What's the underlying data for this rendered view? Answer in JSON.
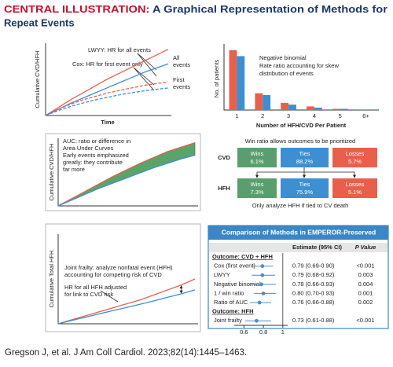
{
  "header": {
    "label": "CENTRAL ILLUSTRATION:",
    "title_lines": [
      "A Graphical Representation of Methods for",
      "Repeat Events"
    ]
  },
  "chart_data": [
    {
      "type": "line",
      "ylabel": "Cumulative CVD/HFH",
      "xlabel": "Time",
      "annotations": [
        [
          "LWYY: HR for all events"
        ],
        [
          "Cox: HR for first event only"
        ],
        [
          "All",
          "events"
        ],
        [
          "First",
          "events"
        ]
      ],
      "x": [
        0,
        1,
        2,
        3,
        4,
        5,
        6,
        7,
        8,
        9,
        10
      ],
      "xlim": [
        0,
        10
      ],
      "ylim": [
        0,
        4.2
      ],
      "series": [
        {
          "color": "#e8604c",
          "values": [
            0,
            0.45,
            0.9,
            1.3,
            1.7,
            2.1,
            2.45,
            2.8,
            3.15,
            3.5,
            3.85
          ]
        },
        {
          "color": "#3d8fd1",
          "values": [
            0,
            0.35,
            0.7,
            1.0,
            1.3,
            1.6,
            1.9,
            2.2,
            2.5,
            2.75,
            3.0
          ]
        },
        {
          "color": "#e8604c",
          "dash": true,
          "values": [
            0,
            0.35,
            0.65,
            0.9,
            1.1,
            1.3,
            1.45,
            1.6,
            1.75,
            1.85,
            1.95
          ]
        },
        {
          "color": "#3d8fd1",
          "dash": true,
          "values": [
            0,
            0.28,
            0.52,
            0.72,
            0.9,
            1.05,
            1.2,
            1.32,
            1.43,
            1.52,
            1.6
          ]
        }
      ]
    },
    {
      "type": "bar",
      "text_lines": [
        "Negative binomial",
        "Rate ratio accounting for skew",
        "distribution of events"
      ],
      "ylabel": "No. of patients",
      "xlabel": "Number of HFH/CVD Per Patient",
      "categories": [
        "1",
        "2",
        "3",
        "4",
        "5",
        "6+"
      ],
      "ylim": [
        0,
        105
      ],
      "series": [
        {
          "color": "#e8604c",
          "values": [
            100,
            28,
            12,
            6,
            2,
            1
          ]
        },
        {
          "color": "#3d8fd1",
          "values": [
            90,
            25,
            9,
            4,
            2,
            1
          ]
        }
      ]
    },
    {
      "type": "line",
      "ylabel": "Cumulative CVD/HFH",
      "annotations": [
        [
          "AUC: ratio or difference in",
          "Area Under Curves"
        ],
        [
          "Early events emphasized",
          "greatly: they contribute",
          "far more"
        ]
      ],
      "x": [
        0,
        1,
        2,
        3,
        4,
        5,
        6,
        7,
        8,
        9,
        10
      ],
      "xlim": [
        0,
        10
      ],
      "ylim": [
        0,
        4.6
      ],
      "fill_between": [
        0,
        1
      ],
      "fill_color": "#5aa469",
      "series": [
        {
          "color": "#e8604c",
          "values": [
            0,
            0.5,
            1.0,
            1.5,
            2.0,
            2.45,
            2.9,
            3.3,
            3.7,
            4.0,
            4.3
          ]
        },
        {
          "color": "#3d8fd1",
          "values": [
            0,
            0.4,
            0.8,
            1.2,
            1.55,
            1.9,
            2.25,
            2.6,
            2.9,
            3.2,
            3.45
          ]
        }
      ]
    },
    {
      "type": "line",
      "ylabel": "Cumulative Total HFH",
      "annotations": [
        [
          "Joint frailty: analyze nonfatal event (HFH)",
          "accounting for competing risk of CVD"
        ],
        [
          "HR for all HFH adjusted",
          "for link to CVD risk"
        ]
      ],
      "x": [
        0,
        1,
        2,
        3,
        4,
        5,
        6,
        7,
        8,
        9,
        10
      ],
      "xlim": [
        0,
        10
      ],
      "ylim": [
        0,
        4.5
      ],
      "series": [
        {
          "color": "#e8604c",
          "values": [
            0,
            0.2,
            0.4,
            0.6,
            0.8,
            1.0,
            1.2,
            1.45,
            1.7,
            1.95,
            2.25
          ]
        },
        {
          "color": "#3d8fd1",
          "values": [
            0,
            0.17,
            0.33,
            0.5,
            0.66,
            0.82,
            0.98,
            1.15,
            1.33,
            1.5,
            1.7
          ]
        }
      ]
    },
    {
      "type": "forest",
      "title": "Comparison of Methods in EMPEROR-Preserved",
      "columns": [
        "Estimate (95% CI)",
        "P Value"
      ],
      "color": "#4a90c8",
      "xlim": [
        0.5,
        1.05
      ],
      "xticks": [
        0.6,
        0.8,
        1
      ],
      "groups": [
        {
          "label": "Outcome: CVD + HFH",
          "rows": [
            {
              "label": "Cox (first event)",
              "estimate": 0.79,
              "lower": 0.69,
              "upper": 0.9,
              "value_label": "0.79 (0.69-0.90)",
              "p": "<0.001"
            },
            {
              "label": "LWYY",
              "estimate": 0.79,
              "lower": 0.68,
              "upper": 0.92,
              "value_label": "0.79 (0.68-0.92)",
              "p": "0.003"
            },
            {
              "label": "Negative binomial",
              "estimate": 0.78,
              "lower": 0.66,
              "upper": 0.93,
              "value_label": "0.78 (0.66-0.93)",
              "p": "0.004"
            },
            {
              "label": "1 / win ratio",
              "estimate": 0.8,
              "lower": 0.7,
              "upper": 0.93,
              "value_label": "0.80 (0.70-0.93)",
              "p": "0.001"
            },
            {
              "label": "Ratio of AUC",
              "estimate": 0.76,
              "lower": 0.66,
              "upper": 0.88,
              "value_label": "0.76 (0.66-0.88)",
              "p": "0.002"
            }
          ]
        },
        {
          "label": "Outcome: HFH",
          "rows": [
            {
              "label": "Joint frailty",
              "estimate": 0.73,
              "lower": 0.61,
              "upper": 0.88,
              "value_label": "0.73 (0.61-0.88)",
              "p": "<0.001"
            }
          ]
        }
      ]
    }
  ],
  "win_ratio": {
    "title": "Win ratio allows outcomes to be prioritized",
    "rows": [
      {
        "label": "CVD",
        "cells": [
          {
            "label": "Wins",
            "value": "6.1%"
          },
          {
            "label": "Ties",
            "value": "88.2%"
          },
          {
            "label": "Losses",
            "value": "5.7%"
          }
        ]
      },
      {
        "label": "HFH",
        "cells": [
          {
            "label": "Wins",
            "value": "7.3%"
          },
          {
            "label": "Ties",
            "value": "75.9%"
          },
          {
            "label": "Losses",
            "value": "5.1%"
          }
        ]
      }
    ],
    "note": "Only analyze HFH if tied to CV death"
  },
  "citation": "Gregson J, et al. J Am Coll Cardiol. 2023;82(14):1445–1463."
}
